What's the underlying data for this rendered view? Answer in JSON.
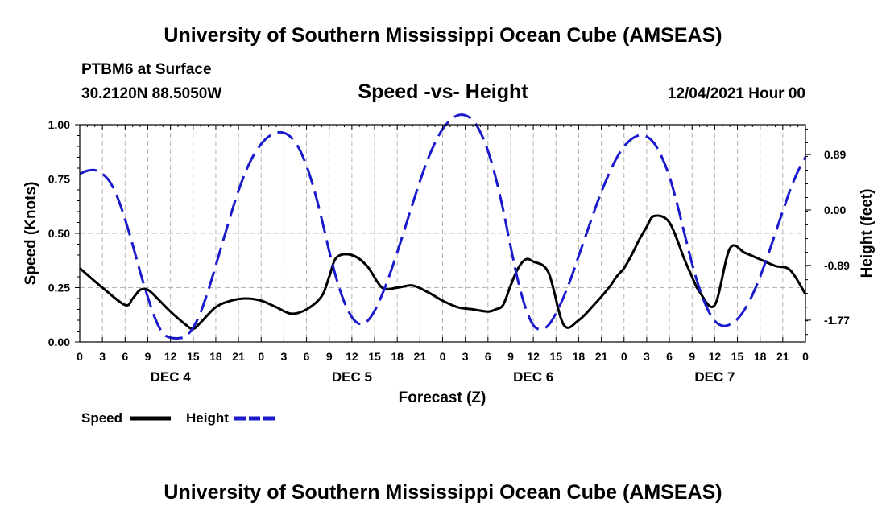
{
  "header": {
    "title": "University of Southern Mississippi Ocean Cube (AMSEAS)",
    "station": "PTBM6 at Surface",
    "coords": "30.2120N  88.5050W",
    "datetime": "12/04/2021 Hour 00"
  },
  "footer": {
    "title": "University of Southern Mississippi Ocean Cube (AMSEAS)"
  },
  "chart_data": {
    "type": "line",
    "title": "Speed -vs- Height",
    "xlabel": "Forecast (Z)",
    "ylabel": "Speed (Knots)",
    "y2label": "Height (feet)",
    "xlim": [
      0,
      96
    ],
    "ylim": [
      0,
      1
    ],
    "y2lim": [
      -2.12,
      1.37
    ],
    "x_ticks": [
      0,
      3,
      6,
      9,
      12,
      15,
      18,
      21,
      24,
      27,
      30,
      33,
      36,
      39,
      42,
      45,
      48,
      51,
      54,
      57,
      60,
      63,
      66,
      69,
      72,
      75,
      78,
      81,
      84,
      87,
      90,
      93,
      96
    ],
    "x_tick_labels": [
      "0",
      "3",
      "6",
      "9",
      "12",
      "15",
      "18",
      "21",
      "0",
      "3",
      "6",
      "9",
      "12",
      "15",
      "18",
      "21",
      "0",
      "3",
      "6",
      "9",
      "12",
      "15",
      "18",
      "21",
      "0",
      "3",
      "6",
      "9",
      "12",
      "15",
      "18",
      "21",
      "0"
    ],
    "day_labels": [
      {
        "x": 12,
        "label": "DEC 4"
      },
      {
        "x": 36,
        "label": "DEC 5"
      },
      {
        "x": 60,
        "label": "DEC 6"
      },
      {
        "x": 84,
        "label": "DEC 7"
      }
    ],
    "y_ticks": [
      0,
      0.25,
      0.5,
      0.75,
      1.0
    ],
    "y_tick_labels": [
      "0.00",
      "0.25",
      "0.50",
      "0.75",
      "1.00"
    ],
    "y2_ticks": [
      0.89,
      0.0,
      -0.89,
      -1.77
    ],
    "y2_tick_labels": [
      "0.89",
      "0.00",
      "-0.89",
      "-1.77"
    ],
    "grid": true,
    "legend_position": "bottom-left",
    "series": [
      {
        "name": "Speed",
        "axis": "left",
        "color": "#000000",
        "style": "solid",
        "x": [
          0,
          3,
          6,
          7,
          8,
          9,
          10,
          12,
          14,
          15,
          16,
          18,
          20,
          22,
          24,
          26,
          28,
          30,
          32,
          33,
          34,
          36,
          38,
          40,
          42,
          44,
          46,
          48,
          50,
          52,
          54,
          55,
          56,
          57,
          58,
          59,
          60,
          62,
          64,
          66,
          68,
          70,
          71,
          72,
          73,
          74,
          75,
          76,
          78,
          80,
          81,
          82,
          84,
          86,
          88,
          90,
          92,
          94,
          96
        ],
        "values": [
          0.34,
          0.25,
          0.17,
          0.2,
          0.24,
          0.24,
          0.21,
          0.14,
          0.08,
          0.06,
          0.09,
          0.16,
          0.19,
          0.2,
          0.19,
          0.16,
          0.13,
          0.15,
          0.21,
          0.3,
          0.39,
          0.4,
          0.35,
          0.25,
          0.25,
          0.26,
          0.23,
          0.19,
          0.16,
          0.15,
          0.14,
          0.15,
          0.17,
          0.26,
          0.34,
          0.38,
          0.37,
          0.32,
          0.08,
          0.1,
          0.17,
          0.25,
          0.3,
          0.34,
          0.4,
          0.47,
          0.53,
          0.58,
          0.55,
          0.38,
          0.3,
          0.23,
          0.17,
          0.43,
          0.41,
          0.38,
          0.35,
          0.33,
          0.22
        ]
      },
      {
        "name": "Height",
        "axis": "right",
        "color": "#1a1acc",
        "style": "dashed",
        "x": [
          0,
          1,
          2,
          3,
          4,
          5,
          6,
          7,
          8,
          9,
          10,
          11,
          12,
          13,
          14,
          15,
          16,
          17,
          18,
          19,
          20,
          21,
          22,
          23,
          24,
          25,
          26,
          27,
          28,
          29,
          30,
          31,
          32,
          33,
          34,
          35,
          36,
          37,
          38,
          39,
          40,
          41,
          42,
          43,
          44,
          45,
          46,
          47,
          48,
          49,
          50,
          51,
          52,
          53,
          54,
          55,
          56,
          57,
          58,
          59,
          60,
          61,
          62,
          63,
          64,
          65,
          66,
          67,
          68,
          69,
          70,
          71,
          72,
          73,
          74,
          75,
          76,
          77,
          78,
          79,
          80,
          81,
          82,
          83,
          84,
          85,
          86,
          87,
          88,
          89,
          90,
          91,
          92,
          93,
          94,
          95,
          96
        ],
        "values": [
          0.58,
          0.63,
          0.64,
          0.58,
          0.45,
          0.2,
          -0.15,
          -0.56,
          -1.0,
          -1.4,
          -1.75,
          -1.98,
          -2.05,
          -2.06,
          -2.03,
          -1.89,
          -1.64,
          -1.29,
          -0.89,
          -0.48,
          -0.07,
          0.31,
          0.63,
          0.88,
          1.06,
          1.18,
          1.24,
          1.24,
          1.16,
          0.99,
          0.71,
          0.33,
          -0.14,
          -0.66,
          -1.12,
          -1.48,
          -1.72,
          -1.83,
          -1.79,
          -1.62,
          -1.36,
          -1.04,
          -0.68,
          -0.3,
          0.09,
          0.46,
          0.8,
          1.08,
          1.3,
          1.44,
          1.52,
          1.52,
          1.44,
          1.25,
          0.95,
          0.53,
          0.01,
          -0.59,
          -1.15,
          -1.58,
          -1.85,
          -1.92,
          -1.85,
          -1.66,
          -1.4,
          -1.09,
          -0.74,
          -0.39,
          -0.04,
          0.29,
          0.58,
          0.83,
          1.02,
          1.14,
          1.2,
          1.18,
          1.07,
          0.85,
          0.54,
          0.11,
          -0.38,
          -0.86,
          -1.27,
          -1.58,
          -1.78,
          -1.86,
          -1.84,
          -1.75,
          -1.59,
          -1.36,
          -1.07,
          -0.74,
          -0.38,
          -0.02,
          0.33,
          0.62,
          0.85
        ]
      }
    ]
  }
}
